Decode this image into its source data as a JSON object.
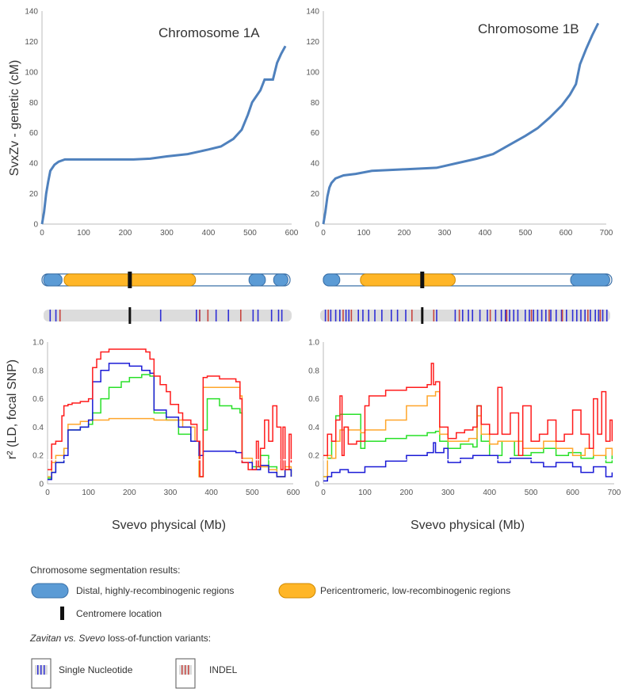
{
  "colors": {
    "genetic_line": "#4f81bd",
    "distal_fill": "#5b9bd5",
    "distal_stroke": "#3a70a8",
    "pericentro_fill": "#ffb627",
    "pericentro_stroke": "#d08a00",
    "centromere": "#111111",
    "snp_tick": "#2f2fd6",
    "indel_tick": "#c8453f",
    "track_bg": "#dcdcdc",
    "ld_series": {
      "red": "#ff1c1c",
      "orange": "#ffa62b",
      "green": "#28e028",
      "blue": "#1a1ad6"
    },
    "threshold": "#ffffff"
  },
  "chart_data": [
    {
      "type": "line",
      "panel": "1A-genetic",
      "title": "Chromosome 1A",
      "xlabel": "",
      "ylabel": "SvxZv - genetic (cM)",
      "xlim": [
        0,
        600
      ],
      "ylim": [
        0,
        140
      ],
      "xticks": [
        0,
        100,
        200,
        300,
        400,
        500,
        600
      ],
      "yticks": [
        0,
        20,
        40,
        60,
        80,
        100,
        120,
        140
      ],
      "x": [
        0,
        5,
        10,
        15,
        20,
        30,
        40,
        55,
        80,
        150,
        220,
        260,
        300,
        350,
        400,
        430,
        460,
        480,
        495,
        505,
        515,
        525,
        535,
        540,
        555,
        565,
        575,
        585
      ],
      "y": [
        0,
        8,
        20,
        28,
        35,
        39,
        41,
        42.5,
        42.5,
        42.5,
        42.5,
        43,
        44.5,
        46,
        49,
        51,
        56,
        62,
        72,
        80,
        84,
        88,
        95,
        95,
        95,
        106,
        112,
        117
      ]
    },
    {
      "type": "line",
      "panel": "1B-genetic",
      "title": "Chromosome 1B",
      "xlabel": "",
      "ylabel": "",
      "xlim": [
        0,
        700
      ],
      "ylim": [
        0,
        140
      ],
      "xticks": [
        0,
        100,
        200,
        300,
        400,
        500,
        600,
        700
      ],
      "yticks": [
        0,
        20,
        40,
        60,
        80,
        100,
        120,
        140
      ],
      "x": [
        0,
        5,
        10,
        15,
        20,
        30,
        50,
        80,
        120,
        200,
        280,
        330,
        380,
        420,
        460,
        500,
        530,
        560,
        590,
        610,
        625,
        635,
        650,
        665,
        680
      ],
      "y": [
        0,
        8,
        18,
        24,
        27,
        30,
        32,
        33,
        35,
        36,
        37,
        40,
        43,
        46,
        52,
        58,
        63,
        70,
        78,
        85,
        92,
        105,
        115,
        124,
        132
      ]
    },
    {
      "type": "line",
      "panel": "1A-LD",
      "title": "",
      "xlabel": "Svevo physical (Mb)",
      "ylabel": "r² (LD, focal SNP)",
      "xlim": [
        0,
        600
      ],
      "ylim": [
        0,
        1
      ],
      "xticks": [
        0,
        100,
        200,
        300,
        400,
        500,
        600
      ],
      "yticks": [
        0,
        0.2,
        0.4,
        0.6,
        0.8,
        1.0
      ],
      "threshold": 0.17,
      "series": [
        {
          "name": "red",
          "x": [
            0,
            10,
            20,
            35,
            40,
            50,
            60,
            80,
            100,
            110,
            120,
            130,
            150,
            200,
            230,
            240,
            250,
            260,
            275,
            290,
            300,
            320,
            330,
            350,
            365,
            372,
            380,
            390,
            420,
            440,
            460,
            470,
            475,
            490,
            510,
            515,
            520,
            530,
            540,
            550,
            560,
            570,
            575,
            580,
            590,
            595
          ],
          "y": [
            0.1,
            0.28,
            0.3,
            0.48,
            0.55,
            0.56,
            0.57,
            0.58,
            0.6,
            0.82,
            0.88,
            0.93,
            0.95,
            0.95,
            0.95,
            0.93,
            0.88,
            0.76,
            0.7,
            0.65,
            0.56,
            0.5,
            0.45,
            0.42,
            0.3,
            0.05,
            0.75,
            0.76,
            0.74,
            0.74,
            0.72,
            0.6,
            0.15,
            0.1,
            0.3,
            0.12,
            0.25,
            0.45,
            0.3,
            0.55,
            0.4,
            0.1,
            0.4,
            0.1,
            0.35,
            0.15
          ]
        },
        {
          "name": "orange",
          "x": [
            0,
            10,
            20,
            40,
            50,
            80,
            100,
            150,
            200,
            250,
            260,
            300,
            330,
            360,
            370,
            380,
            400,
            440,
            470,
            475,
            500,
            520,
            540,
            560,
            580,
            595
          ],
          "y": [
            0.05,
            0.15,
            0.2,
            0.25,
            0.42,
            0.44,
            0.45,
            0.46,
            0.46,
            0.46,
            0.45,
            0.45,
            0.4,
            0.3,
            0.05,
            0.68,
            0.68,
            0.68,
            0.62,
            0.18,
            0.1,
            0.12,
            0.1,
            0.05,
            0.12,
            0.05
          ]
        },
        {
          "name": "green",
          "x": [
            0,
            10,
            20,
            40,
            50,
            80,
            100,
            110,
            130,
            150,
            180,
            200,
            230,
            250,
            260,
            290,
            320,
            350,
            370,
            380,
            390,
            420,
            450,
            470,
            475,
            500,
            520,
            540,
            560,
            580,
            595
          ],
          "y": [
            0.04,
            0.08,
            0.15,
            0.25,
            0.38,
            0.4,
            0.42,
            0.5,
            0.6,
            0.68,
            0.72,
            0.75,
            0.77,
            0.76,
            0.5,
            0.45,
            0.35,
            0.3,
            0.05,
            0.38,
            0.6,
            0.55,
            0.53,
            0.5,
            0.18,
            0.12,
            0.2,
            0.12,
            0.05,
            0.1,
            0.05
          ]
        },
        {
          "name": "blue",
          "x": [
            0,
            10,
            20,
            40,
            50,
            80,
            100,
            110,
            130,
            150,
            200,
            230,
            250,
            260,
            290,
            320,
            350,
            370,
            380,
            400,
            440,
            460,
            475,
            500,
            520,
            540,
            560,
            580,
            595
          ],
          "y": [
            0.03,
            0.08,
            0.15,
            0.2,
            0.38,
            0.4,
            0.45,
            0.72,
            0.8,
            0.85,
            0.83,
            0.8,
            0.78,
            0.52,
            0.47,
            0.4,
            0.3,
            0.2,
            0.23,
            0.23,
            0.23,
            0.22,
            0.15,
            0.1,
            0.13,
            0.08,
            0.05,
            0.1,
            0.05
          ]
        }
      ]
    },
    {
      "type": "line",
      "panel": "1B-LD",
      "title": "",
      "xlabel": "Svevo physical (Mb)",
      "ylabel": "",
      "xlim": [
        0,
        700
      ],
      "ylim": [
        0,
        1
      ],
      "xticks": [
        0,
        100,
        200,
        300,
        400,
        500,
        600,
        700
      ],
      "yticks": [
        0,
        0.2,
        0.4,
        0.6,
        0.8,
        1.0
      ],
      "threshold": 0.17,
      "series": [
        {
          "name": "red",
          "x": [
            0,
            10,
            20,
            30,
            40,
            45,
            50,
            60,
            80,
            100,
            110,
            150,
            200,
            250,
            260,
            265,
            270,
            280,
            300,
            320,
            340,
            360,
            370,
            380,
            400,
            420,
            430,
            450,
            470,
            480,
            500,
            520,
            540,
            560,
            580,
            600,
            620,
            640,
            650,
            660,
            670,
            680,
            690,
            695
          ],
          "y": [
            0.2,
            0.35,
            0.3,
            0.45,
            0.62,
            0.2,
            0.4,
            0.28,
            0.3,
            0.55,
            0.62,
            0.66,
            0.68,
            0.7,
            0.85,
            0.7,
            0.72,
            0.4,
            0.32,
            0.36,
            0.38,
            0.4,
            0.55,
            0.42,
            0.35,
            0.68,
            0.35,
            0.5,
            0.2,
            0.55,
            0.3,
            0.35,
            0.45,
            0.3,
            0.35,
            0.52,
            0.35,
            0.25,
            0.6,
            0.35,
            0.65,
            0.3,
            0.45,
            0.3
          ]
        },
        {
          "name": "orange",
          "x": [
            0,
            10,
            20,
            30,
            40,
            50,
            60,
            90,
            100,
            150,
            200,
            250,
            270,
            280,
            300,
            320,
            350,
            370,
            380,
            400,
            420,
            450,
            480,
            500,
            530,
            560,
            600,
            630,
            650,
            680,
            695
          ],
          "y": [
            0.05,
            0.2,
            0.18,
            0.3,
            0.38,
            0.4,
            0.38,
            0.36,
            0.38,
            0.45,
            0.55,
            0.62,
            0.65,
            0.35,
            0.3,
            0.3,
            0.32,
            0.48,
            0.35,
            0.28,
            0.3,
            0.3,
            0.25,
            0.25,
            0.3,
            0.25,
            0.2,
            0.25,
            0.2,
            0.25,
            0.2
          ]
        },
        {
          "name": "green",
          "x": [
            0,
            10,
            20,
            30,
            40,
            50,
            60,
            80,
            90,
            100,
            150,
            200,
            250,
            270,
            280,
            300,
            330,
            360,
            370,
            380,
            400,
            430,
            460,
            500,
            530,
            560,
            590,
            620,
            650,
            680,
            695
          ],
          "y": [
            0.05,
            0.18,
            0.3,
            0.48,
            0.49,
            0.49,
            0.49,
            0.49,
            0.25,
            0.3,
            0.32,
            0.34,
            0.36,
            0.37,
            0.3,
            0.25,
            0.28,
            0.26,
            0.55,
            0.3,
            0.2,
            0.3,
            0.2,
            0.22,
            0.25,
            0.2,
            0.22,
            0.18,
            0.2,
            0.15,
            0.2
          ]
        },
        {
          "name": "blue",
          "x": [
            0,
            10,
            20,
            40,
            60,
            100,
            150,
            200,
            250,
            265,
            270,
            290,
            300,
            330,
            360,
            400,
            420,
            450,
            500,
            530,
            560,
            600,
            620,
            650,
            680,
            695
          ],
          "y": [
            0.02,
            0.05,
            0.08,
            0.1,
            0.08,
            0.12,
            0.16,
            0.2,
            0.22,
            0.29,
            0.22,
            0.25,
            0.15,
            0.18,
            0.2,
            0.2,
            0.15,
            0.18,
            0.15,
            0.12,
            0.15,
            0.12,
            0.08,
            0.12,
            0.05,
            0.08
          ]
        }
      ]
    }
  ],
  "segmentation": {
    "1A": {
      "distal": [
        [
          0,
          45
        ],
        [
          500,
          540
        ],
        [
          560,
          595
        ]
      ],
      "pericentro": [
        [
          50,
          370
        ]
      ],
      "centromere": 210,
      "snp_ticks": [
        16,
        30,
        210,
        285,
        372,
        380,
        420,
        450,
        510,
        522,
        555,
        572,
        580
      ],
      "indel_ticks": [
        40,
        380,
        400,
        480
      ]
    },
    "1B": {
      "distal": [
        [
          0,
          40
        ],
        [
          600,
          695
        ]
      ],
      "pericentro": [
        [
          90,
          320
        ]
      ],
      "centromere": 240,
      "snp_ticks": [
        5,
        18,
        30,
        40,
        55,
        62,
        85,
        96,
        110,
        125,
        142,
        165,
        180,
        200,
        240,
        275,
        320,
        338,
        352,
        362,
        380,
        398,
        418,
        432,
        442,
        452,
        462,
        472,
        490,
        500,
        510,
        520,
        530,
        540,
        552,
        565,
        578,
        590,
        605,
        615,
        625,
        635,
        648,
        660,
        668,
        678,
        688
      ],
      "indel_ticks": [
        12,
        48,
        68,
        215,
        268,
        330,
        405,
        445,
        505,
        548,
        580,
        642,
        672
      ]
    }
  },
  "legend": {
    "seg_title": "Chromosome segmentation results:",
    "distal_label": "Distal, highly-recombinogenic regions",
    "pericentro_label": "Pericentromeric, low-recombinogenic regions",
    "centromere_label": "Centromere location",
    "lof_title_italic1": "Zavitan",
    "lof_title_mid": " vs. ",
    "lof_title_italic2": "Svevo",
    "lof_title_rest": " loss-of-function variants:",
    "snp_label": "Single Nucleotide",
    "indel_label": "INDEL"
  }
}
